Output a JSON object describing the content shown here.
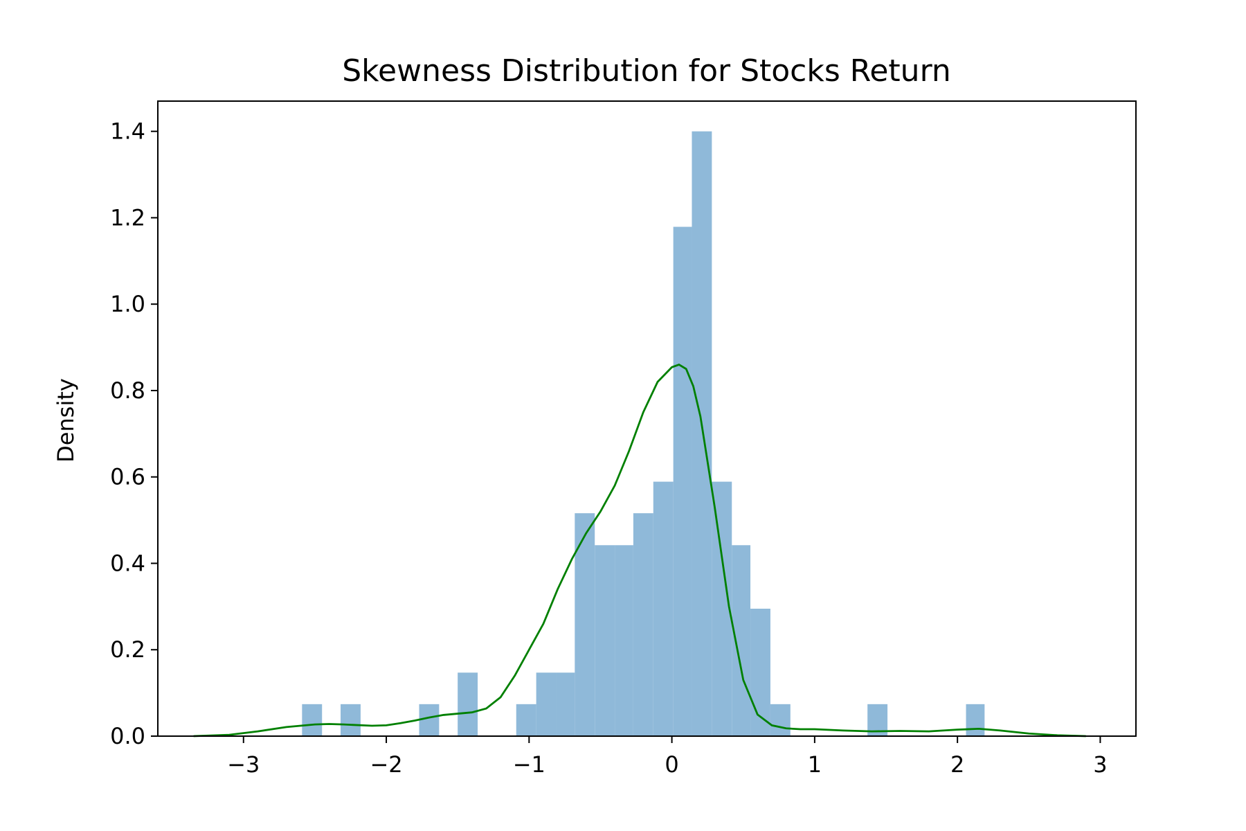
{
  "chart_data": {
    "type": "bar",
    "title": "Skewness Distribution for Stocks Return",
    "xlabel": "",
    "ylabel": "Density",
    "xlim": [
      -3.6,
      3.25
    ],
    "ylim": [
      0,
      1.47
    ],
    "grid": false,
    "x_ticks": [
      -3,
      -2,
      -1,
      0,
      1,
      2,
      3
    ],
    "x_tick_labels": [
      "−3",
      "−2",
      "−1",
      "0",
      "1",
      "2",
      "3"
    ],
    "y_ticks": [
      0.0,
      0.2,
      0.4,
      0.6,
      0.8,
      1.0,
      1.2,
      1.4
    ],
    "y_tick_labels": [
      "0.0",
      "0.2",
      "0.4",
      "0.6",
      "0.8",
      "1.0",
      "1.2",
      "1.4"
    ],
    "colors": {
      "histogram": "#8fb9d9",
      "kde": "#008000",
      "frame": "#000000"
    },
    "histogram": {
      "bin_edges": [
        -2.59,
        -2.45,
        -2.32,
        -2.18,
        -2.04,
        -1.91,
        -1.77,
        -1.63,
        -1.5,
        -1.36,
        -1.22,
        -1.09,
        -0.95,
        -0.81,
        -0.68,
        -0.54,
        -0.4,
        -0.27,
        -0.13,
        0.01,
        0.14,
        0.28,
        0.42,
        0.55,
        0.69,
        0.83,
        0.96,
        1.1,
        1.24,
        1.37,
        1.51,
        1.65,
        1.78,
        1.92,
        2.06,
        2.19
      ],
      "values": [
        0.074,
        0,
        0.074,
        0,
        0,
        0,
        0.074,
        0,
        0.147,
        0,
        0,
        0.074,
        0.147,
        0.147,
        0.516,
        0.442,
        0.442,
        0.516,
        0.589,
        1.179,
        1.4,
        0.589,
        0.442,
        0.295,
        0.074,
        0,
        0,
        0,
        0,
        0.074,
        0,
        0,
        0,
        0,
        0.074
      ]
    },
    "kde": {
      "x": [
        -3.35,
        -3.1,
        -2.9,
        -2.7,
        -2.5,
        -2.4,
        -2.3,
        -2.1,
        -2.0,
        -1.9,
        -1.8,
        -1.7,
        -1.6,
        -1.5,
        -1.4,
        -1.3,
        -1.2,
        -1.1,
        -1.0,
        -0.9,
        -0.8,
        -0.7,
        -0.6,
        -0.5,
        -0.4,
        -0.3,
        -0.2,
        -0.1,
        0.0,
        0.05,
        0.1,
        0.15,
        0.2,
        0.3,
        0.4,
        0.5,
        0.6,
        0.7,
        0.8,
        0.9,
        1.0,
        1.2,
        1.4,
        1.6,
        1.8,
        2.0,
        2.15,
        2.3,
        2.5,
        2.7,
        2.9
      ],
      "y": [
        0.0,
        0.003,
        0.011,
        0.021,
        0.027,
        0.028,
        0.027,
        0.024,
        0.025,
        0.03,
        0.036,
        0.043,
        0.049,
        0.052,
        0.055,
        0.064,
        0.09,
        0.14,
        0.2,
        0.26,
        0.34,
        0.41,
        0.47,
        0.52,
        0.58,
        0.66,
        0.75,
        0.82,
        0.854,
        0.86,
        0.85,
        0.81,
        0.74,
        0.53,
        0.3,
        0.13,
        0.05,
        0.025,
        0.018,
        0.016,
        0.016,
        0.013,
        0.011,
        0.012,
        0.011,
        0.015,
        0.017,
        0.013,
        0.006,
        0.002,
        0.0
      ]
    }
  }
}
